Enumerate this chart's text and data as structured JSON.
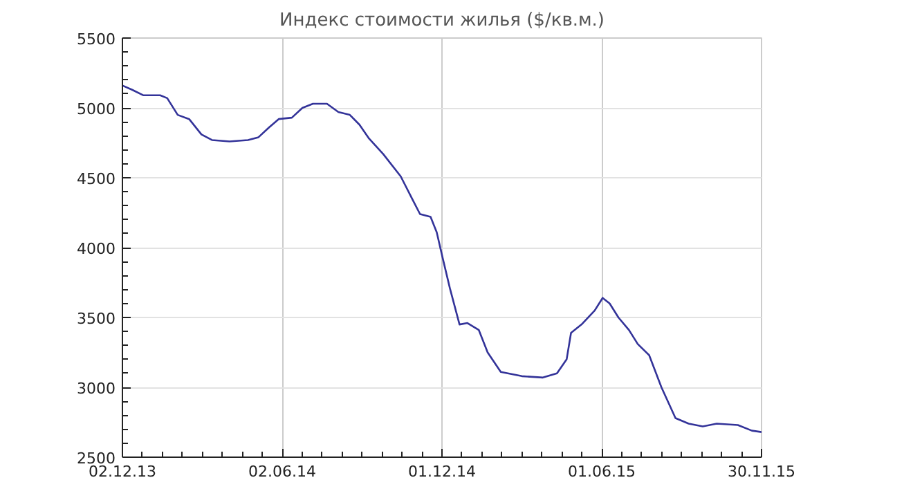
{
  "chart_data": {
    "type": "line",
    "title": "Индекс стоимости жилья ($/кв.м.)",
    "x": [
      "2013-12-02",
      "2013-12-13",
      "2013-12-26",
      "2014-01-14",
      "2014-01-22",
      "2014-02-03",
      "2014-02-16",
      "2014-03-02",
      "2014-03-14",
      "2014-04-03",
      "2014-04-24",
      "2014-05-06",
      "2014-05-18",
      "2014-05-29",
      "2014-06-13",
      "2014-06-25",
      "2014-07-07",
      "2014-07-23",
      "2014-08-05",
      "2014-08-18",
      "2014-08-29",
      "2014-09-09",
      "2014-09-25",
      "2014-10-15",
      "2014-10-28",
      "2014-11-06",
      "2014-11-18",
      "2014-11-25",
      "2014-12-02",
      "2014-12-10",
      "2014-12-21",
      "2014-12-30",
      "2015-01-12",
      "2015-01-22",
      "2015-02-06",
      "2015-03-02",
      "2015-03-26",
      "2015-04-11",
      "2015-04-22",
      "2015-04-27",
      "2015-05-09",
      "2015-05-24",
      "2015-06-02",
      "2015-06-10",
      "2015-06-20",
      "2015-07-02",
      "2015-07-12",
      "2015-07-25",
      "2015-08-08",
      "2015-08-24",
      "2015-09-08",
      "2015-09-24",
      "2015-10-10",
      "2015-11-03",
      "2015-11-19",
      "2015-11-30"
    ],
    "series": [
      {
        "color": "#333399",
        "values": [
          5160,
          5130,
          5090,
          5090,
          5070,
          4950,
          4920,
          4810,
          4770,
          4760,
          4770,
          4790,
          4860,
          4920,
          4930,
          5000,
          5030,
          5030,
          4970,
          4950,
          4880,
          4780,
          4670,
          4510,
          4350,
          4240,
          4220,
          4110,
          3920,
          3710,
          3450,
          3460,
          3410,
          3250,
          3110,
          3080,
          3070,
          3100,
          3200,
          3390,
          3450,
          3550,
          3640,
          3600,
          3500,
          3410,
          3310,
          3230,
          3000,
          2780,
          2740,
          2720,
          2740,
          2730,
          2690,
          2680
        ]
      }
    ],
    "xlim": [
      "2013-12-02",
      "2015-11-30"
    ],
    "xticks": [
      {
        "value": "2013-12-02",
        "label": "02.12.13"
      },
      {
        "value": "2014-06-02",
        "label": "02.06.14"
      },
      {
        "value": "2014-12-01",
        "label": "01.12.14"
      },
      {
        "value": "2015-06-01",
        "label": "01.06.15"
      },
      {
        "value": "2015-11-30",
        "label": "30.11.15"
      }
    ],
    "ylim": [
      2500,
      5500
    ],
    "yticks": [
      2500,
      3000,
      3500,
      4000,
      4500,
      5000,
      5500
    ],
    "grid": true,
    "marker": "none",
    "line_style": "solid"
  }
}
